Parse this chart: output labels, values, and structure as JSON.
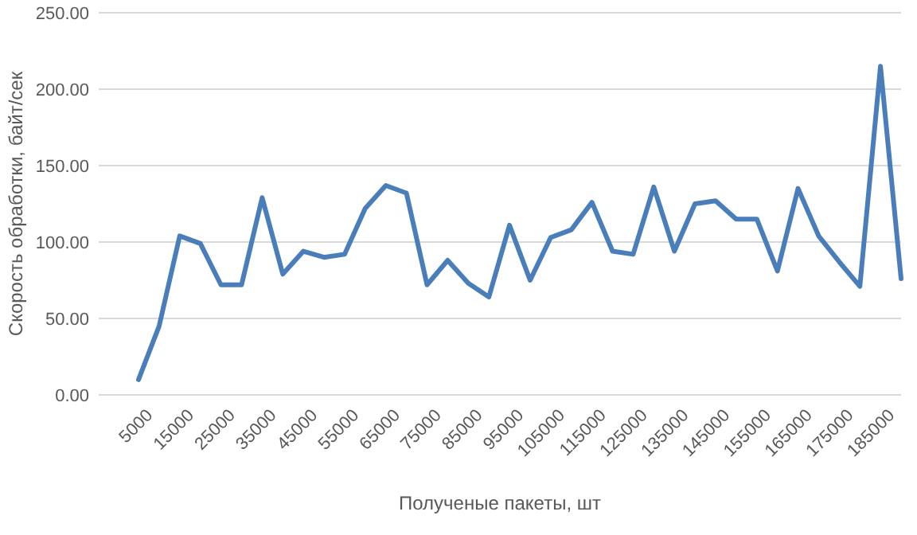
{
  "chart_data": {
    "type": "line",
    "xlabel": "Полученые пакеты, шт",
    "ylabel": "Скорость обработки, байт/сек",
    "categories": [
      "5000",
      null,
      "15000",
      null,
      "25000",
      null,
      "35000",
      null,
      "45000",
      null,
      "55000",
      null,
      "65000",
      null,
      "75000",
      null,
      "85000",
      null,
      "95000",
      null,
      "105000",
      null,
      "115000",
      null,
      "125000",
      null,
      "135000",
      null,
      "145000",
      null,
      "155000",
      null,
      "165000",
      null,
      "175000",
      null,
      "185000",
      null
    ],
    "series": [
      {
        "color": "#4a7ebb",
        "values": [
          10,
          45,
          104,
          99,
          72,
          72,
          129,
          79,
          94,
          90,
          92,
          122,
          137,
          132,
          72,
          88,
          73,
          64,
          111,
          75,
          103,
          108,
          126,
          94,
          92,
          136,
          94,
          125,
          127,
          115,
          115,
          81,
          135,
          104,
          87,
          71,
          215,
          76
        ]
      }
    ],
    "ylim": [
      0,
      250
    ],
    "yticks": [
      {
        "value": 0,
        "label": "0.00"
      },
      {
        "value": 50,
        "label": "50.00"
      },
      {
        "value": 100,
        "label": "100.00"
      },
      {
        "value": 150,
        "label": "150.00"
      },
      {
        "value": 200,
        "label": "200.00"
      },
      {
        "value": 250,
        "label": "250.00"
      }
    ],
    "grid": "y",
    "marker": "none",
    "line_style": "solid"
  }
}
